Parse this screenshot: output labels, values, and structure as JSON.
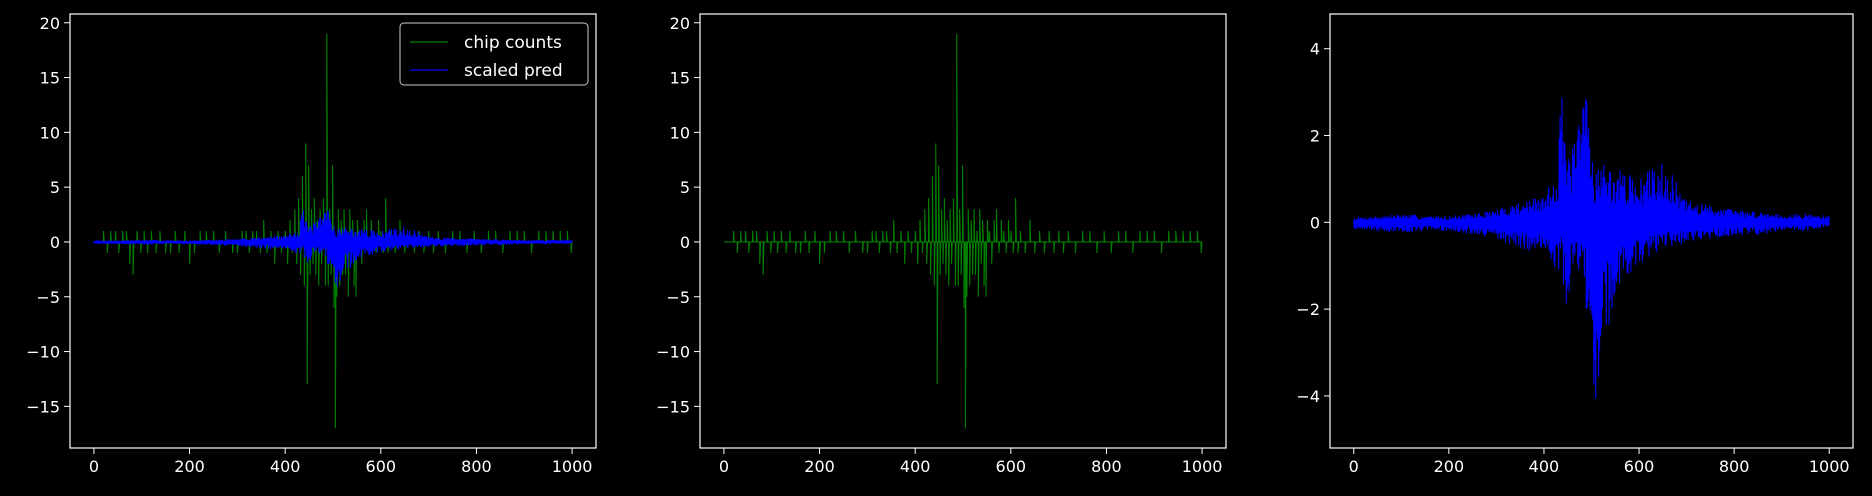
{
  "theme": {
    "background": "#000000",
    "axis_color": "#ffffff",
    "chip_color": "#008000",
    "pred_color": "#0000ff"
  },
  "chart_data": [
    {
      "type": "line",
      "xlim": [
        -50,
        1050
      ],
      "ylim": [
        -18.8,
        20.8
      ],
      "xticks": [
        0,
        200,
        400,
        600,
        800,
        1000
      ],
      "yticks": [
        -15,
        -10,
        -5,
        0,
        5,
        10,
        15,
        20
      ],
      "legend": {
        "placement": "upper right",
        "entries": [
          "chip counts",
          "scaled pred"
        ]
      },
      "series": [
        {
          "name": "chip counts",
          "color": "#008000",
          "baseline": 0,
          "spikes": [
            [
              20,
              1
            ],
            [
              28,
              -1
            ],
            [
              35,
              1
            ],
            [
              45,
              1
            ],
            [
              52,
              -1
            ],
            [
              60,
              1
            ],
            [
              68,
              1
            ],
            [
              75,
              -2
            ],
            [
              82,
              -3
            ],
            [
              90,
              1
            ],
            [
              98,
              -1
            ],
            [
              105,
              1
            ],
            [
              112,
              -1
            ],
            [
              120,
              1
            ],
            [
              130,
              -1
            ],
            [
              138,
              1
            ],
            [
              150,
              -1
            ],
            [
              160,
              -1
            ],
            [
              170,
              1
            ],
            [
              178,
              -1
            ],
            [
              190,
              1
            ],
            [
              200,
              -2
            ],
            [
              210,
              -1
            ],
            [
              222,
              1
            ],
            [
              235,
              1
            ],
            [
              250,
              1
            ],
            [
              262,
              -1
            ],
            [
              275,
              1
            ],
            [
              290,
              -1
            ],
            [
              300,
              -1
            ],
            [
              310,
              1
            ],
            [
              318,
              1
            ],
            [
              325,
              -1
            ],
            [
              332,
              1
            ],
            [
              340,
              1
            ],
            [
              348,
              -1
            ],
            [
              355,
              2
            ],
            [
              362,
              -1
            ],
            [
              370,
              1
            ],
            [
              378,
              -2
            ],
            [
              385,
              1
            ],
            [
              392,
              -1
            ],
            [
              400,
              1
            ],
            [
              405,
              -2
            ],
            [
              410,
              2
            ],
            [
              415,
              -1
            ],
            [
              420,
              3
            ],
            [
              424,
              -2
            ],
            [
              428,
              4
            ],
            [
              432,
              -3
            ],
            [
              436,
              6
            ],
            [
              440,
              -4
            ],
            [
              443,
              9
            ],
            [
              446,
              -13
            ],
            [
              449,
              7
            ],
            [
              452,
              -3
            ],
            [
              455,
              3
            ],
            [
              458,
              -2
            ],
            [
              461,
              4
            ],
            [
              464,
              -3
            ],
            [
              467,
              2
            ],
            [
              470,
              -4
            ],
            [
              473,
              3
            ],
            [
              476,
              -2
            ],
            [
              480,
              4
            ],
            [
              484,
              -4
            ],
            [
              487,
              19
            ],
            [
              490,
              -4
            ],
            [
              493,
              3
            ],
            [
              496,
              -3
            ],
            [
              499,
              7
            ],
            [
              502,
              -6
            ],
            [
              505,
              -17
            ],
            [
              508,
              -5
            ],
            [
              511,
              3
            ],
            [
              514,
              -4
            ],
            [
              517,
              2
            ],
            [
              520,
              -3
            ],
            [
              523,
              3
            ],
            [
              526,
              -3
            ],
            [
              529,
              1
            ],
            [
              532,
              -5
            ],
            [
              535,
              3
            ],
            [
              538,
              -2
            ],
            [
              541,
              2
            ],
            [
              544,
              -4
            ],
            [
              548,
              -5
            ],
            [
              551,
              2
            ],
            [
              555,
              1
            ],
            [
              560,
              -2
            ],
            [
              565,
              2
            ],
            [
              570,
              3
            ],
            [
              575,
              -1
            ],
            [
              580,
              2
            ],
            [
              585,
              1
            ],
            [
              590,
              -1
            ],
            [
              595,
              2
            ],
            [
              600,
              1
            ],
            [
              605,
              -1
            ],
            [
              610,
              4
            ],
            [
              615,
              -1
            ],
            [
              620,
              1
            ],
            [
              630,
              -1
            ],
            [
              640,
              2
            ],
            [
              650,
              -1
            ],
            [
              660,
              1
            ],
            [
              670,
              -1
            ],
            [
              680,
              1
            ],
            [
              690,
              -1
            ],
            [
              700,
              1
            ],
            [
              710,
              -1
            ],
            [
              720,
              1
            ],
            [
              735,
              -1
            ],
            [
              750,
              1
            ],
            [
              765,
              1
            ],
            [
              780,
              -1
            ],
            [
              795,
              1
            ],
            [
              810,
              -1
            ],
            [
              825,
              1
            ],
            [
              840,
              1
            ],
            [
              855,
              -1
            ],
            [
              870,
              1
            ],
            [
              885,
              1
            ],
            [
              900,
              1
            ],
            [
              915,
              -1
            ],
            [
              930,
              1
            ],
            [
              945,
              1
            ],
            [
              960,
              1
            ],
            [
              975,
              1
            ],
            [
              990,
              1
            ],
            [
              998,
              -1
            ]
          ]
        },
        {
          "name": "scaled pred",
          "color": "#0000ff",
          "envelope": [
            [
              0,
              0.12,
              -0.15
            ],
            [
              50,
              0.15,
              -0.2
            ],
            [
              100,
              0.2,
              -0.25
            ],
            [
              150,
              0.15,
              -0.2
            ],
            [
              200,
              0.15,
              -0.2
            ],
            [
              250,
              0.2,
              -0.3
            ],
            [
              300,
              0.3,
              -0.4
            ],
            [
              350,
              0.5,
              -0.6
            ],
            [
              400,
              0.6,
              -0.8
            ],
            [
              430,
              1.3,
              -1.3
            ],
            [
              436,
              4.4,
              -0.5
            ],
            [
              445,
              1.5,
              -2.3
            ],
            [
              460,
              1.8,
              -1.0
            ],
            [
              480,
              2.5,
              -1.2
            ],
            [
              487,
              3.8,
              -1.5
            ],
            [
              495,
              2.8,
              -3.5
            ],
            [
              505,
              1.2,
              -4.8
            ],
            [
              520,
              1.5,
              -3.0
            ],
            [
              540,
              1.2,
              -2.3
            ],
            [
              560,
              1.2,
              -1.5
            ],
            [
              600,
              1.0,
              -1.0
            ],
            [
              650,
              1.5,
              -0.6
            ],
            [
              700,
              0.5,
              -0.5
            ],
            [
              750,
              0.4,
              -0.4
            ],
            [
              800,
              0.3,
              -0.3
            ],
            [
              850,
              0.25,
              -0.3
            ],
            [
              900,
              0.2,
              -0.2
            ],
            [
              950,
              0.2,
              -0.2
            ],
            [
              1000,
              0.15,
              -0.1
            ]
          ]
        }
      ]
    },
    {
      "type": "line",
      "xlim": [
        -50,
        1050
      ],
      "ylim": [
        -18.8,
        20.8
      ],
      "xticks": [
        0,
        200,
        400,
        600,
        800,
        1000
      ],
      "yticks": [
        -15,
        -10,
        -5,
        0,
        5,
        10,
        15,
        20
      ],
      "series_ref": "chip counts"
    },
    {
      "type": "line",
      "xlim": [
        -50,
        1050
      ],
      "ylim": [
        -5.2,
        4.8
      ],
      "xticks": [
        0,
        200,
        400,
        600,
        800,
        1000
      ],
      "yticks": [
        -4,
        -2,
        0,
        2,
        4
      ],
      "series_ref": "scaled pred"
    }
  ]
}
